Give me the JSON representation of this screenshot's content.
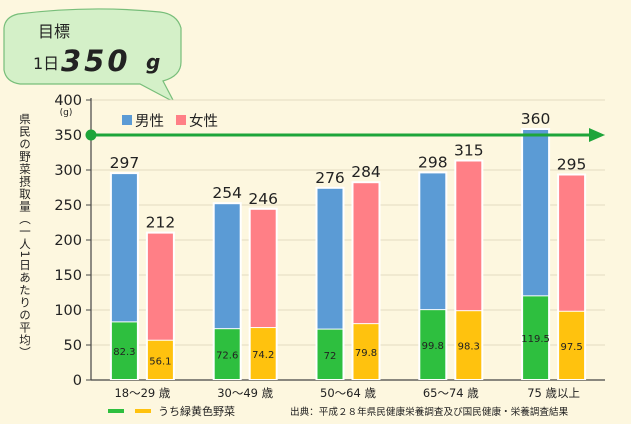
{
  "callout": {
    "line1": "目標",
    "prefix": "1日",
    "value": "350",
    "unit": "g"
  },
  "legend": {
    "male": "男性",
    "female": "女性",
    "green_yellow": "うち緑黄色野菜"
  },
  "source_note": "出典：平成２８年県民健康栄養調査及び国民健康・栄養調査結果",
  "colors": {
    "background": "#fdf7df",
    "male": "#5b9bd5",
    "female": "#ff7f86",
    "green": "#2ebf3f",
    "yellow": "#ffc20e",
    "target_line": "#1ea53a",
    "bubble": "#d4f0c8"
  },
  "chart_data": {
    "type": "bar",
    "title": "",
    "ylabel": "県民の野菜摂取量（一人1日あたりの平均）",
    "yunit": "(g)",
    "ylim": [
      0,
      400
    ],
    "yticks": [
      0,
      50,
      100,
      150,
      200,
      250,
      300,
      350,
      400
    ],
    "categories": [
      "18〜29 歳",
      "30〜49 歳",
      "50〜64 歳",
      "65〜74 歳",
      "75 歳以上"
    ],
    "series": [
      {
        "name": "男性",
        "values": [
          297,
          254,
          276,
          298,
          360
        ],
        "green_yellow": [
          82.3,
          72.6,
          72.0,
          99.8,
          119.5
        ]
      },
      {
        "name": "女性",
        "values": [
          212,
          246,
          284,
          315,
          295
        ],
        "green_yellow": [
          56.1,
          74.2,
          79.8,
          98.3,
          97.5
        ]
      }
    ],
    "target": 350
  }
}
